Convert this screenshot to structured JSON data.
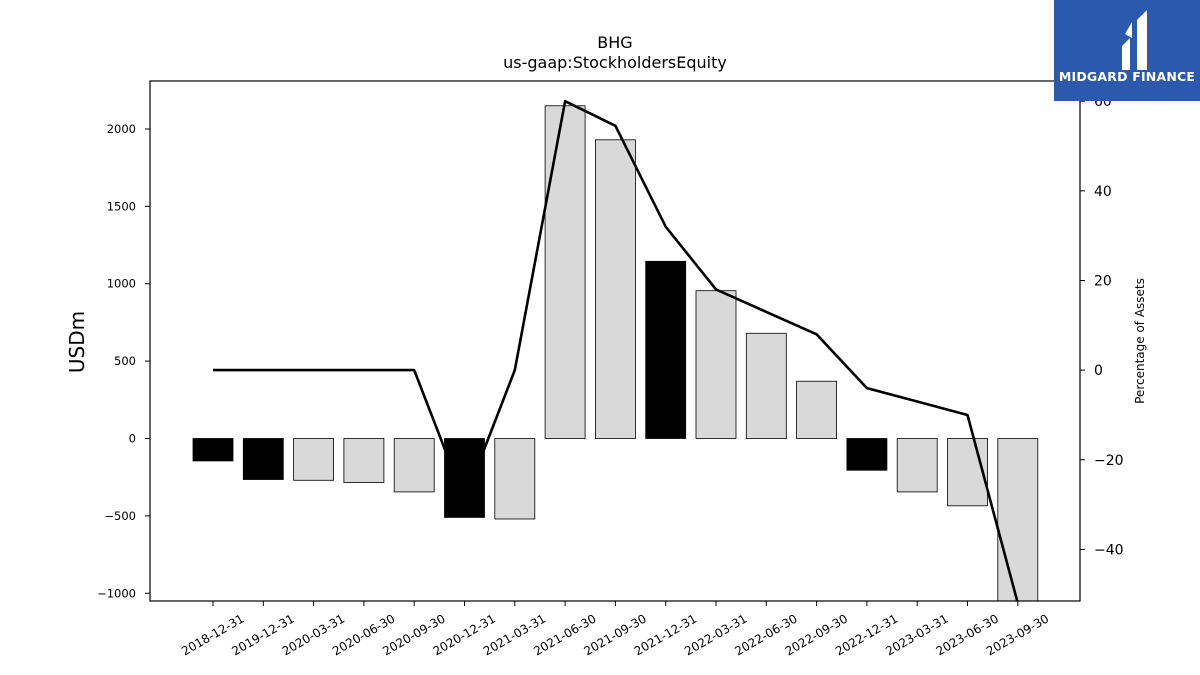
{
  "chart_data": {
    "type": "bar",
    "title": "BHG",
    "subtitle": "us-gaap:StockholdersEquity",
    "ylabel": "USDm",
    "y2label": "Percentage of Assets",
    "ylim": [
      -1050,
      2310
    ],
    "y2lim": [
      -51.5,
      64.5
    ],
    "yticks": [
      -1000,
      -500,
      0,
      500,
      1000,
      1500,
      2000
    ],
    "y2ticks": [
      -40,
      -20,
      0,
      20,
      40,
      60
    ],
    "categories": [
      "2018-12-31",
      "2019-12-31",
      "2020-03-31",
      "2020-06-30",
      "2020-09-30",
      "2020-12-31",
      "2021-03-31",
      "2021-06-30",
      "2021-09-30",
      "2021-12-31",
      "2022-03-31",
      "2022-06-30",
      "2022-09-30",
      "2022-12-31",
      "2023-03-31",
      "2023-06-30",
      "2023-09-30"
    ],
    "series": [
      {
        "type": "bar",
        "values": [
          -145,
          -265,
          -270,
          -285,
          -345,
          -510,
          -520,
          2150,
          1930,
          1145,
          955,
          680,
          370,
          -205,
          -345,
          -435,
          -1050
        ],
        "annual": [
          true,
          true,
          false,
          false,
          false,
          true,
          false,
          false,
          false,
          true,
          false,
          false,
          false,
          true,
          false,
          false,
          false
        ]
      },
      {
        "type": "line",
        "axis": "right",
        "values": [
          0,
          0,
          0,
          0,
          0,
          -29,
          0,
          60,
          54.5,
          32,
          18,
          13,
          8,
          -4,
          -7,
          -10,
          -52
        ]
      }
    ],
    "colors": {
      "annual": "#000000",
      "quarter": "#d9d9d9",
      "line": "#000000"
    },
    "grid": false,
    "legend": "none"
  },
  "brand": {
    "name": "MIDGARD FINANCE",
    "color": "#2b5aad"
  }
}
